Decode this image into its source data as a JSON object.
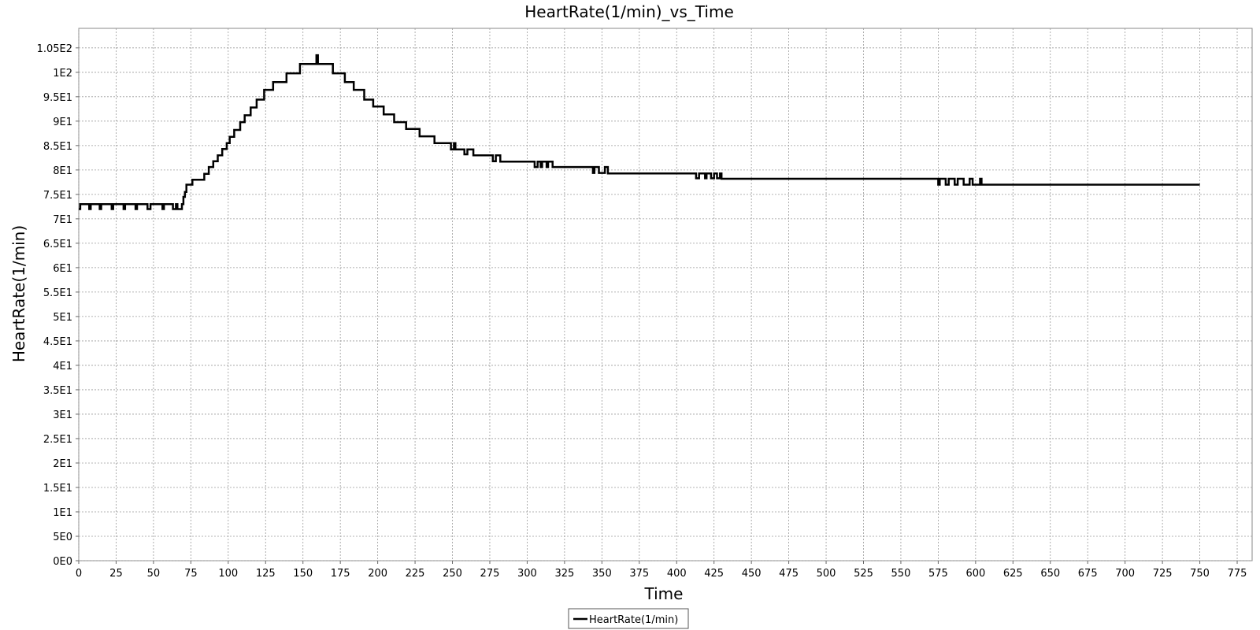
{
  "chart_data": {
    "type": "line",
    "title": "HeartRate(1/min)_vs_Time",
    "xlabel": "Time",
    "ylabel": "HeartRate(1/min)",
    "xlim": [
      0,
      785
    ],
    "ylim": [
      0,
      109
    ],
    "grid": true,
    "legend_position": "bottom-center",
    "x_ticks": [
      "0",
      "25",
      "50",
      "75",
      "100",
      "125",
      "150",
      "175",
      "200",
      "225",
      "250",
      "275",
      "300",
      "325",
      "350",
      "375",
      "400",
      "425",
      "450",
      "475",
      "500",
      "525",
      "550",
      "575",
      "600",
      "625",
      "650",
      "675",
      "700",
      "725",
      "750",
      "775"
    ],
    "y_ticks": [
      "0E0",
      "5E0",
      "1E1",
      "1.5E1",
      "2E1",
      "2.5E1",
      "3E1",
      "3.5E1",
      "4E1",
      "4.5E1",
      "5E1",
      "5.5E1",
      "6E1",
      "6.5E1",
      "7E1",
      "7.5E1",
      "8E1",
      "8.5E1",
      "9E1",
      "9.5E1",
      "1E2",
      "1.05E2"
    ],
    "series": [
      {
        "name": "HeartRate(1/min)",
        "color": "#000000",
        "step": true,
        "points": [
          [
            0,
            72.0
          ],
          [
            1,
            73.0
          ],
          [
            7,
            72.0
          ],
          [
            8,
            73.0
          ],
          [
            14,
            72.0
          ],
          [
            15,
            73.0
          ],
          [
            22,
            72.0
          ],
          [
            23,
            73.0
          ],
          [
            30,
            72.0
          ],
          [
            31,
            73.0
          ],
          [
            38,
            72.0
          ],
          [
            39,
            73.0
          ],
          [
            46,
            72.0
          ],
          [
            48,
            73.0
          ],
          [
            56,
            72.0
          ],
          [
            57,
            73.0
          ],
          [
            63,
            72.0
          ],
          [
            65,
            73.0
          ],
          [
            66,
            72.0
          ],
          [
            69,
            73.0
          ],
          [
            70,
            74.5
          ],
          [
            71,
            75.5
          ],
          [
            72,
            77.0
          ],
          [
            76,
            78.0
          ],
          [
            84,
            79.2
          ],
          [
            87,
            80.6
          ],
          [
            90,
            81.8
          ],
          [
            93,
            83.0
          ],
          [
            96,
            84.3
          ],
          [
            99,
            85.5
          ],
          [
            101,
            86.8
          ],
          [
            104,
            88.2
          ],
          [
            108,
            89.8
          ],
          [
            111,
            91.2
          ],
          [
            115,
            92.8
          ],
          [
            119,
            94.4
          ],
          [
            124,
            96.4
          ],
          [
            130,
            98.0
          ],
          [
            139,
            99.8
          ],
          [
            148,
            101.7
          ],
          [
            159,
            103.5
          ],
          [
            160,
            101.7
          ],
          [
            170,
            99.8
          ],
          [
            178,
            98.0
          ],
          [
            184,
            96.4
          ],
          [
            191,
            94.4
          ],
          [
            197,
            93.0
          ],
          [
            204,
            91.4
          ],
          [
            211,
            89.8
          ],
          [
            219,
            88.4
          ],
          [
            228,
            86.9
          ],
          [
            238,
            85.5
          ],
          [
            249,
            84.2
          ],
          [
            251,
            85.5
          ],
          [
            252,
            84.2
          ],
          [
            258,
            83.2
          ],
          [
            260,
            84.2
          ],
          [
            264,
            83.0
          ],
          [
            277,
            81.8
          ],
          [
            279,
            83.0
          ],
          [
            282,
            81.7
          ],
          [
            305,
            80.6
          ],
          [
            307,
            81.7
          ],
          [
            309,
            80.6
          ],
          [
            310,
            81.7
          ],
          [
            313,
            80.6
          ],
          [
            314,
            81.7
          ],
          [
            317,
            80.6
          ],
          [
            344,
            79.4
          ],
          [
            345,
            80.6
          ],
          [
            348,
            79.4
          ],
          [
            352,
            80.6
          ],
          [
            354,
            79.3
          ],
          [
            413,
            78.3
          ],
          [
            415,
            79.3
          ],
          [
            419,
            78.3
          ],
          [
            420,
            79.3
          ],
          [
            423,
            78.3
          ],
          [
            425,
            79.3
          ],
          [
            427,
            78.3
          ],
          [
            429,
            79.3
          ],
          [
            430,
            78.2
          ],
          [
            575,
            77.0
          ],
          [
            576,
            78.2
          ],
          [
            580,
            77.0
          ],
          [
            582,
            78.2
          ],
          [
            586,
            77.0
          ],
          [
            588,
            78.2
          ],
          [
            592,
            77.0
          ],
          [
            596,
            78.2
          ],
          [
            598,
            77.0
          ],
          [
            603,
            78.2
          ],
          [
            604,
            77.0
          ],
          [
            750,
            77.0
          ]
        ]
      }
    ]
  }
}
